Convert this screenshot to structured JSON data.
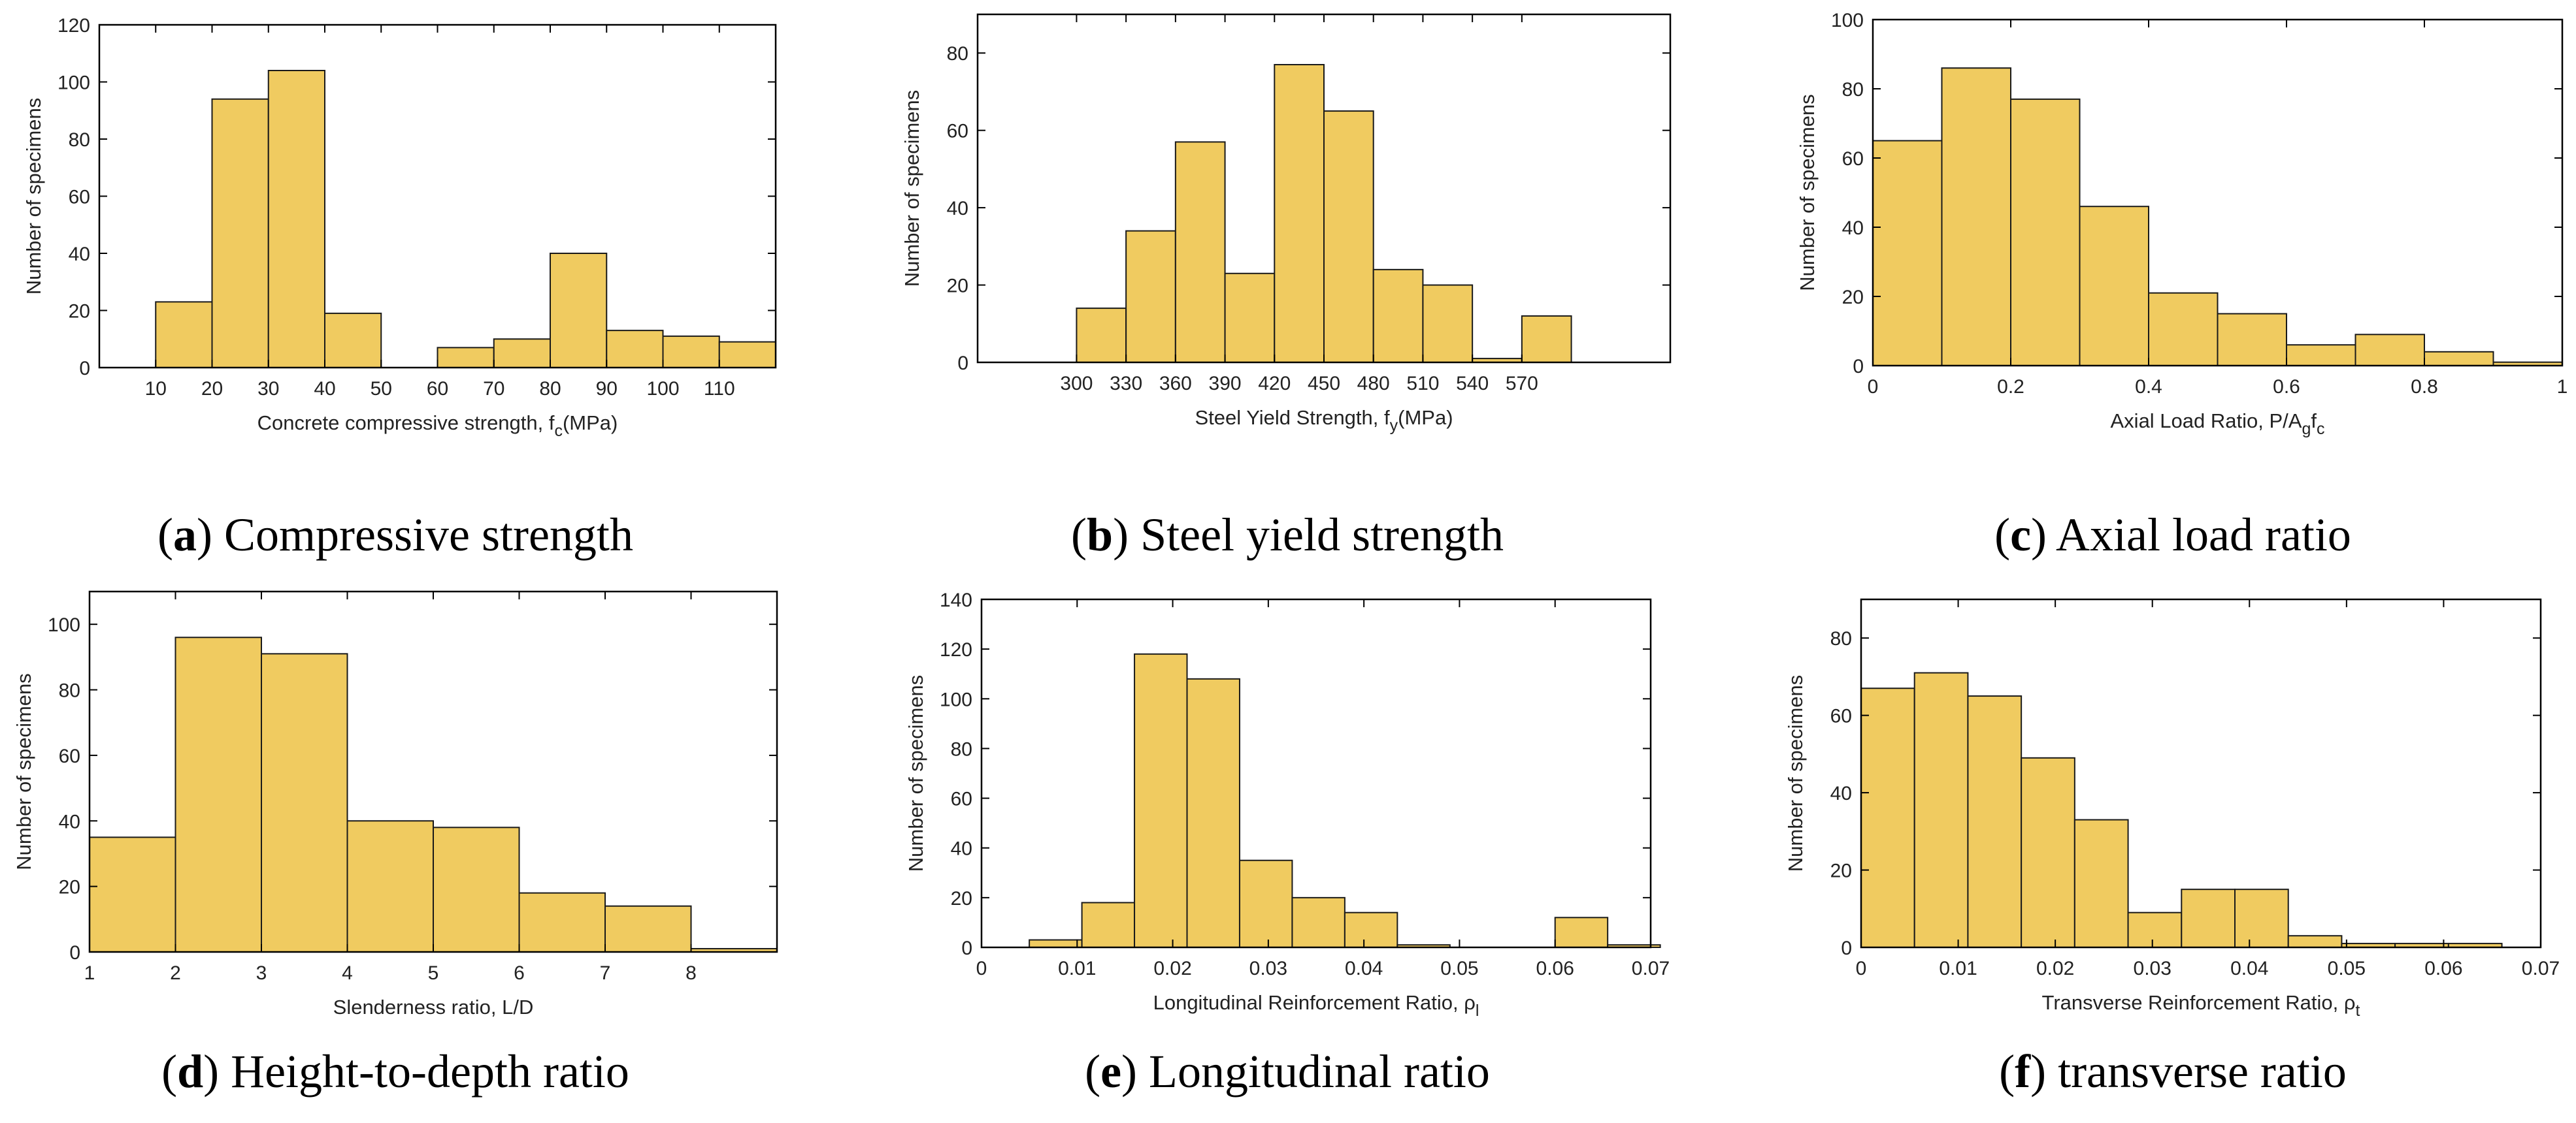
{
  "colors": {
    "bar_fill": "#f0cb60",
    "bar_stroke": "#1a1a1a",
    "axis": "#000000"
  },
  "panels": [
    {
      "caption_letter": "a",
      "caption_text": "Compressive strength"
    },
    {
      "caption_letter": "b",
      "caption_text": "Steel yield strength"
    },
    {
      "caption_letter": "c",
      "caption_text": "Axial load ratio"
    },
    {
      "caption_letter": "d",
      "caption_text": "Height-to-depth ratio"
    },
    {
      "caption_letter": "e",
      "caption_text": "Longitudinal ratio"
    },
    {
      "caption_letter": "f",
      "caption_text": "transverse ratio"
    }
  ],
  "chart_data": [
    {
      "type": "bar",
      "title": "(a) Compressive strength",
      "xlabel_main": "Concrete compressive strength, f",
      "xlabel_sub": "c",
      "xlabel_tail": "(MPa)",
      "ylabel": "Number of specimens",
      "xlim": [
        0,
        120
      ],
      "ylim": [
        0,
        120
      ],
      "xticks": [
        10,
        20,
        30,
        40,
        50,
        60,
        70,
        80,
        90,
        100,
        110
      ],
      "yticks": [
        0,
        20,
        40,
        60,
        80,
        100,
        120
      ],
      "bin_edges": [
        10,
        20,
        30,
        40,
        50,
        60,
        70,
        80,
        90,
        100,
        110,
        120
      ],
      "values": [
        23,
        94,
        104,
        19,
        0,
        7,
        10,
        40,
        13,
        11,
        9
      ]
    },
    {
      "type": "bar",
      "title": "(b) Steel yield strength",
      "xlabel_main": "Steel Yield Strength, f",
      "xlabel_sub": "y",
      "xlabel_tail": "(MPa)",
      "ylabel": "Number of specimens",
      "xlim": [
        240,
        660
      ],
      "ylim": [
        0,
        90
      ],
      "xticks": [
        300,
        330,
        360,
        390,
        420,
        450,
        480,
        510,
        540,
        570
      ],
      "yticks": [
        0,
        20,
        40,
        60,
        80
      ],
      "bin_edges": [
        300,
        330,
        360,
        390,
        420,
        450,
        480,
        510,
        540,
        570,
        600
      ],
      "values": [
        14,
        34,
        57,
        23,
        77,
        65,
        24,
        20,
        1,
        12
      ]
    },
    {
      "type": "bar",
      "title": "(c) Axial load ratio",
      "xlabel_main": "Axial Load Ratio, P/A",
      "xlabel_sub": "g",
      "xlabel_tail": "f",
      "xlabel_sub2": "c",
      "ylabel": "Number of specimens",
      "xlim": [
        0,
        1
      ],
      "ylim": [
        0,
        100
      ],
      "xticks": [
        0,
        0.2,
        0.4,
        0.6,
        0.8,
        1
      ],
      "yticks": [
        0,
        20,
        40,
        60,
        80,
        100
      ],
      "bin_edges": [
        0,
        0.1,
        0.2,
        0.3,
        0.4,
        0.5,
        0.6,
        0.7,
        0.8,
        0.9,
        1.0
      ],
      "values": [
        65,
        86,
        77,
        46,
        21,
        15,
        6,
        9,
        4,
        1
      ]
    },
    {
      "type": "bar",
      "title": "(d) Height-to-depth ratio",
      "xlabel_main": "Slenderness ratio, L/D",
      "xlabel_sub": "",
      "xlabel_tail": "",
      "ylabel": "Number of specimens",
      "xlim": [
        1,
        9
      ],
      "ylim": [
        0,
        110
      ],
      "xticks": [
        1,
        2,
        3,
        4,
        5,
        6,
        7,
        8
      ],
      "yticks": [
        0,
        20,
        40,
        60,
        80,
        100
      ],
      "bin_edges": [
        1,
        2,
        3,
        4,
        5,
        6,
        7,
        8,
        9
      ],
      "values": [
        35,
        96,
        91,
        40,
        38,
        18,
        14,
        1
      ]
    },
    {
      "type": "bar",
      "title": "(e) Longitudinal ratio",
      "xlabel_main": "Longitudinal Reinforcement Ratio, ρ",
      "xlabel_sub": "l",
      "xlabel_tail": "",
      "ylabel": "Number of specimens",
      "xlim": [
        0,
        0.07
      ],
      "ylim": [
        0,
        140
      ],
      "xticks": [
        0,
        0.01,
        0.02,
        0.03,
        0.04,
        0.05,
        0.06,
        0.07
      ],
      "yticks": [
        0,
        20,
        40,
        60,
        80,
        100,
        120,
        140
      ],
      "bin_edges": [
        0.005,
        0.0105,
        0.016,
        0.0215,
        0.027,
        0.0325,
        0.038,
        0.0435,
        0.049,
        0.0545,
        0.06,
        0.0655,
        0.071
      ],
      "values": [
        3,
        18,
        118,
        108,
        35,
        20,
        14,
        1,
        0,
        0,
        12,
        1
      ]
    },
    {
      "type": "bar",
      "title": "(f) transverse ratio",
      "xlabel_main": "Transverse Reinforcement Ratio, ρ",
      "xlabel_sub": "t",
      "xlabel_tail": "",
      "ylabel": "Number of specimens",
      "xlim": [
        0,
        0.07
      ],
      "ylim": [
        0,
        90
      ],
      "xticks": [
        0,
        0.01,
        0.02,
        0.03,
        0.04,
        0.05,
        0.06,
        0.07
      ],
      "yticks": [
        0,
        20,
        40,
        60,
        80
      ],
      "bin_edges": [
        0,
        0.0055,
        0.011,
        0.0165,
        0.022,
        0.0275,
        0.033,
        0.0385,
        0.044,
        0.0495,
        0.055,
        0.0605,
        0.066
      ],
      "values": [
        67,
        71,
        65,
        49,
        33,
        9,
        15,
        15,
        3,
        1,
        1,
        1
      ]
    }
  ]
}
